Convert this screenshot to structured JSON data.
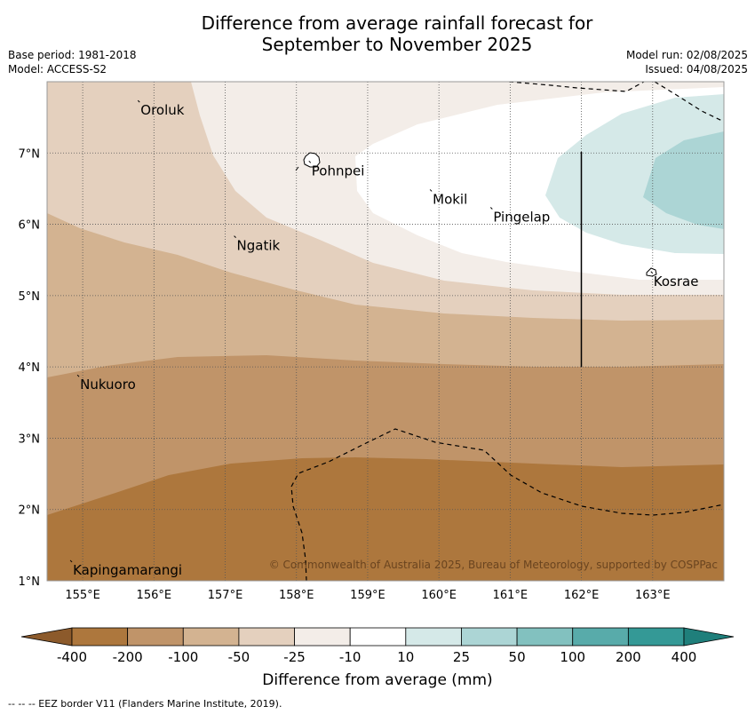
{
  "title_line1": "Difference from average rainfall forecast for",
  "title_line2": "September to November 2025",
  "meta_left": [
    "Base period: 1981-2018",
    "Model: ACCESS-S2"
  ],
  "meta_right": [
    "Model run: 02/08/2025",
    "Issued: 04/08/2025"
  ],
  "map": {
    "lon_range": [
      154.5,
      164
    ],
    "lat_range": [
      1,
      8
    ],
    "lon_ticks": [
      "155°E",
      "156°E",
      "157°E",
      "158°E",
      "159°E",
      "160°E",
      "161°E",
      "162°E",
      "163°E"
    ],
    "lat_ticks": [
      "1°N",
      "2°N",
      "3°N",
      "4°N",
      "5°N",
      "6°N",
      "7°N"
    ],
    "places": [
      {
        "name": "Oroluk",
        "lon": 155.8,
        "lat": 7.7
      },
      {
        "name": "Pohnpei",
        "lon": 158.2,
        "lat": 6.85
      },
      {
        "name": "Mokil",
        "lon": 159.9,
        "lat": 6.45
      },
      {
        "name": "Pingelap",
        "lon": 160.75,
        "lat": 6.2
      },
      {
        "name": "Kosrae",
        "lon": 163.0,
        "lat": 5.3
      },
      {
        "name": "Ngatik",
        "lon": 157.15,
        "lat": 5.8
      },
      {
        "name": "Nukuoro",
        "lon": 154.95,
        "lat": 3.85
      },
      {
        "name": "Kapingamarangi",
        "lon": 154.85,
        "lat": 1.25
      }
    ],
    "copyright": "© Commonwealth of Australia 2025, Bureau of Meteorology, supported by COSPPac"
  },
  "colorbar": {
    "title": "Difference from average (mm)",
    "labels": [
      "-400",
      "-200",
      "-100",
      "-50",
      "-25",
      "-10",
      "10",
      "25",
      "50",
      "100",
      "200",
      "400"
    ],
    "colors": [
      "#8c5a2b",
      "#ad773d",
      "#c09469",
      "#d3b391",
      "#e4d0be",
      "#f3ede8",
      "#ffffff",
      "#d5e9e8",
      "#acd5d5",
      "#82c1bf",
      "#58abaa",
      "#349996",
      "#1f7f7b"
    ]
  },
  "footer": "--  --  -- EEZ border V11 (Flanders Marine Institute, 2019)."
}
